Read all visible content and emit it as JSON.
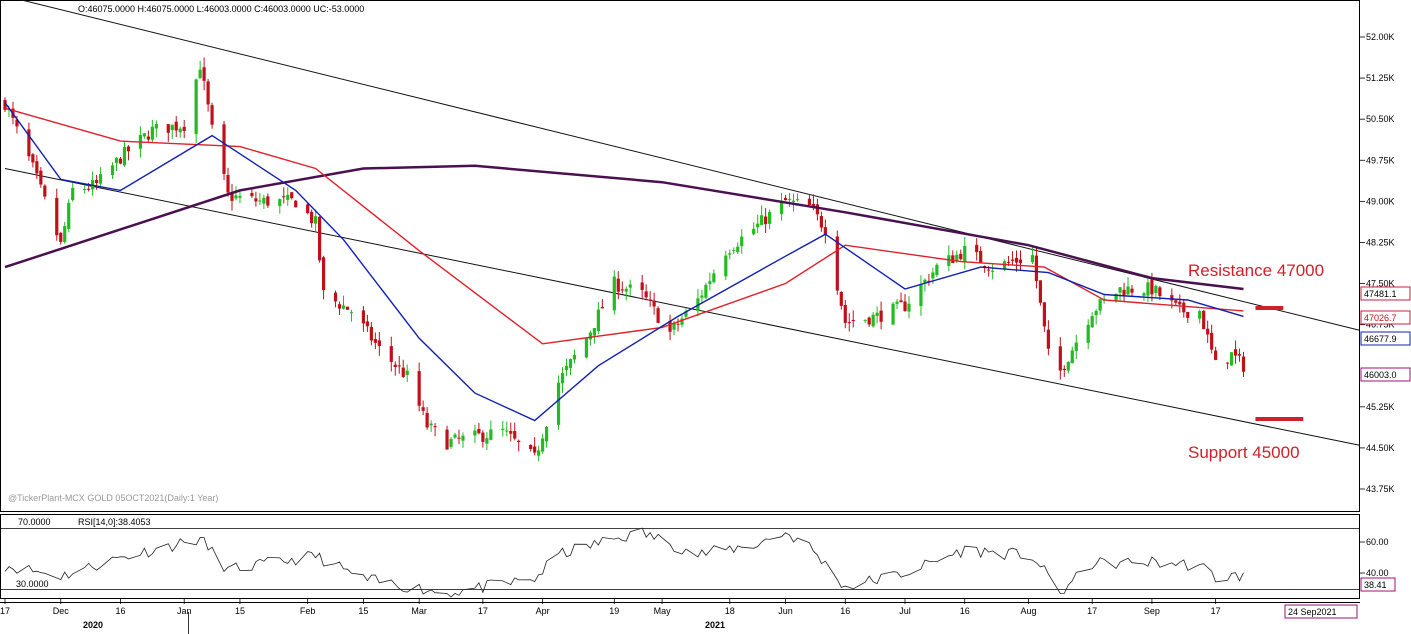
{
  "header": {
    "ohlc": "O:46075.0000   H:46075.0000   L:46003.0000   C:46003.0000   UC:-53.0000"
  },
  "watermark": "@TickerPlant-MCX GOLD 05OCT2021(Daily:1 Year)",
  "rsi_panel": {
    "level_high": "70.0000",
    "level_low": "30.0000",
    "title": "RSI[14,0]:38.4053",
    "value_box": "38.41"
  },
  "price_boxes": {
    "ma_red": "47481.1",
    "ma_red2": "47026.7",
    "ma_blue": "46677.9",
    "last": "46003.0"
  },
  "annotations": {
    "resistance": "Resistance 47000",
    "support": "Support 45000"
  },
  "date_box": "24 Sep2021",
  "colors": {
    "up": "#22bb22",
    "down": "#c0101a",
    "ma_fast": "#1020b0",
    "ma_mid": "#e0202a",
    "ma_slow": "#4a1050",
    "annotation": "#d0202a"
  },
  "chart_data": [
    {
      "type": "candlestick",
      "title": "MCX GOLD 05OCT2021 (Daily: 1 Year)",
      "y_ticks": [
        "52.00K",
        "51.25K",
        "50.50K",
        "49.75K",
        "49.00K",
        "48.25K",
        "47.50K",
        "46.75K",
        "45.25K",
        "44.50K",
        "43.75K"
      ],
      "ylim": [
        43500,
        52300
      ],
      "x_ticks": [
        "17",
        "Dec",
        "16",
        "Jan",
        "15",
        "Feb",
        "15",
        "Mar",
        "17",
        "Apr",
        "19",
        "May",
        "18",
        "Jun",
        "16",
        "Jul",
        "16",
        "Aug",
        "17",
        "Sep",
        "17"
      ],
      "x_years": [
        "2020",
        "2021"
      ],
      "close_path": [
        [
          "2020-11-17",
          50800
        ],
        [
          "2020-11-24",
          49600
        ],
        [
          "2020-12-01",
          48200
        ],
        [
          "2020-12-04",
          49200
        ],
        [
          "2020-12-10",
          49300
        ],
        [
          "2020-12-16",
          49800
        ],
        [
          "2020-12-24",
          50300
        ],
        [
          "2021-01-01",
          50400
        ],
        [
          "2021-01-05",
          51500
        ],
        [
          "2021-01-08",
          50300
        ],
        [
          "2021-01-12",
          49100
        ],
        [
          "2021-01-20",
          49000
        ],
        [
          "2021-01-29",
          49000
        ],
        [
          "2021-02-03",
          48600
        ],
        [
          "2021-02-05",
          47300
        ],
        [
          "2021-02-12",
          47000
        ],
        [
          "2021-02-19",
          46300
        ],
        [
          "2021-02-26",
          45800
        ],
        [
          "2021-03-03",
          44900
        ],
        [
          "2021-03-08",
          44600
        ],
        [
          "2021-03-15",
          44700
        ],
        [
          "2021-03-22",
          44800
        ],
        [
          "2021-03-30",
          44300
        ],
        [
          "2021-04-05",
          45700
        ],
        [
          "2021-04-12",
          46500
        ],
        [
          "2021-04-19",
          47500
        ],
        [
          "2021-04-26",
          47300
        ],
        [
          "2021-05-03",
          46600
        ],
        [
          "2021-05-10",
          47200
        ],
        [
          "2021-05-17",
          48100
        ],
        [
          "2021-05-24",
          48500
        ],
        [
          "2021-06-01",
          49000
        ],
        [
          "2021-06-07",
          48900
        ],
        [
          "2021-06-11",
          48500
        ],
        [
          "2021-06-16",
          46800
        ],
        [
          "2021-06-24",
          46900
        ],
        [
          "2021-07-01",
          47100
        ],
        [
          "2021-07-09",
          47800
        ],
        [
          "2021-07-16",
          48100
        ],
        [
          "2021-07-23",
          47800
        ],
        [
          "2021-08-02",
          48000
        ],
        [
          "2021-08-06",
          46200
        ],
        [
          "2021-08-09",
          45900
        ],
        [
          "2021-08-17",
          47000
        ],
        [
          "2021-08-24",
          47400
        ],
        [
          "2021-09-01",
          47400
        ],
        [
          "2021-09-08",
          47000
        ],
        [
          "2021-09-13",
          47000
        ],
        [
          "2021-09-17",
          46000
        ],
        [
          "2021-09-21",
          46200
        ],
        [
          "2021-09-24",
          46003
        ]
      ],
      "ma_fast": [
        [
          "2020-11-17",
          50800
        ],
        [
          "2020-12-01",
          49400
        ],
        [
          "2020-12-16",
          49200
        ],
        [
          "2021-01-08",
          50200
        ],
        [
          "2021-01-29",
          49200
        ],
        [
          "2021-02-10",
          48300
        ],
        [
          "2021-03-01",
          46500
        ],
        [
          "2021-03-15",
          45500
        ],
        [
          "2021-03-30",
          45000
        ],
        [
          "2021-04-15",
          46000
        ],
        [
          "2021-05-05",
          46900
        ],
        [
          "2021-06-01",
          48000
        ],
        [
          "2021-06-11",
          48400
        ],
        [
          "2021-07-01",
          47400
        ],
        [
          "2021-07-20",
          47800
        ],
        [
          "2021-08-06",
          47700
        ],
        [
          "2021-08-20",
          47300
        ],
        [
          "2021-09-10",
          47200
        ],
        [
          "2021-09-24",
          46900
        ]
      ],
      "ma_mid": [
        [
          "2020-11-17",
          50700
        ],
        [
          "2020-12-16",
          50100
        ],
        [
          "2021-01-15",
          50000
        ],
        [
          "2021-02-03",
          49600
        ],
        [
          "2021-03-01",
          48100
        ],
        [
          "2021-04-01",
          46400
        ],
        [
          "2021-05-01",
          46700
        ],
        [
          "2021-06-01",
          47500
        ],
        [
          "2021-06-16",
          48200
        ],
        [
          "2021-07-15",
          47900
        ],
        [
          "2021-08-05",
          47800
        ],
        [
          "2021-08-20",
          47200
        ],
        [
          "2021-09-24",
          47000
        ]
      ],
      "ma_slow": [
        [
          "2020-11-17",
          47800
        ],
        [
          "2021-01-15",
          49200
        ],
        [
          "2021-02-15",
          49600
        ],
        [
          "2021-03-15",
          49650
        ],
        [
          "2021-05-01",
          49350
        ],
        [
          "2021-06-16",
          48800
        ],
        [
          "2021-08-01",
          48200
        ],
        [
          "2021-09-01",
          47600
        ],
        [
          "2021-09-24",
          47400
        ]
      ],
      "trendlines": [
        {
          "name": "upper",
          "from": [
            "2020-11-17",
            52750
          ],
          "to": [
            "2021-10-23",
            46650
          ]
        },
        {
          "name": "lower",
          "from": [
            "2020-11-17",
            49600
          ],
          "to": [
            "2021-10-23",
            44550
          ]
        }
      ],
      "levels": [
        {
          "label": "Resistance 47000",
          "value": 47000,
          "from": "2021-09-27",
          "to": "2021-10-04"
        },
        {
          "label": "Support 45000",
          "value": 45000,
          "from": "2021-09-27",
          "to": "2021-10-09"
        }
      ]
    },
    {
      "type": "line",
      "title": "RSI[14,0]:38.4053",
      "y_ticks": [
        "60.00",
        "40.00"
      ],
      "ylim": [
        20,
        80
      ],
      "values": [
        [
          "2020-11-17",
          45
        ],
        [
          "2020-12-01",
          38
        ],
        [
          "2020-12-16",
          50
        ],
        [
          "2021-01-05",
          62
        ],
        [
          "2021-01-12",
          42
        ],
        [
          "2021-02-03",
          51
        ],
        [
          "2021-02-15",
          36
        ],
        [
          "2021-03-01",
          30
        ],
        [
          "2021-03-08",
          27
        ],
        [
          "2021-03-30",
          36
        ],
        [
          "2021-04-05",
          52
        ],
        [
          "2021-04-19",
          62
        ],
        [
          "2021-04-26",
          66
        ],
        [
          "2021-05-10",
          52
        ],
        [
          "2021-05-24",
          58
        ],
        [
          "2021-06-01",
          66
        ],
        [
          "2021-06-07",
          57
        ],
        [
          "2021-06-16",
          31
        ],
        [
          "2021-07-01",
          40
        ],
        [
          "2021-07-16",
          55
        ],
        [
          "2021-08-02",
          51
        ],
        [
          "2021-08-09",
          27
        ],
        [
          "2021-08-17",
          46
        ],
        [
          "2021-09-01",
          47
        ],
        [
          "2021-09-13",
          45
        ],
        [
          "2021-09-17",
          37
        ],
        [
          "2021-09-24",
          38.4
        ]
      ]
    }
  ]
}
